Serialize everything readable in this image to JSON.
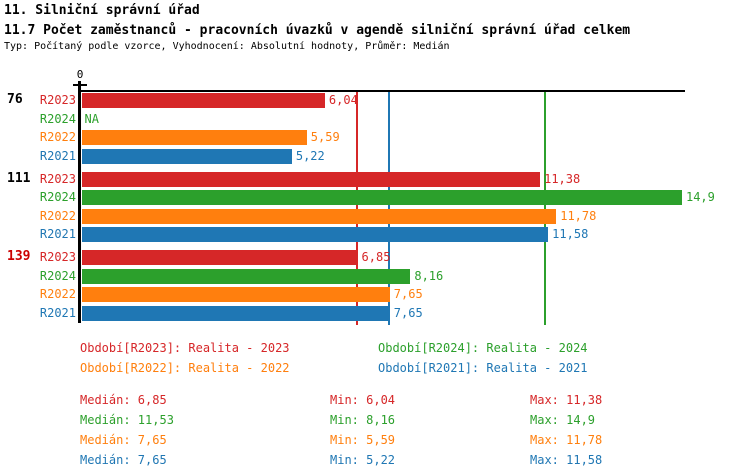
{
  "header": {
    "title": "11. Silniční správní úřad",
    "subtitle": "11.7 Počet zaměstnanců - pracovních úvazků v agendě silniční správní úřad celkem",
    "meta": "Typ: Počítaný podle vzorce, Vyhodnocení: Absolutní hodnoty, Průměr: Medián"
  },
  "colors": {
    "R2023": "#d62728",
    "R2024": "#2ca02c",
    "R2022": "#ff7f0e",
    "R2021": "#1f77b4",
    "group_label_default": "#000000",
    "group_label_highlight": "#cc0000",
    "axis": "#000000"
  },
  "chart_data": {
    "type": "bar",
    "orientation": "horizontal",
    "title": "11.7 Počet zaměstnanců - pracovních úvazků v agendě silniční správní úřad celkem",
    "x_axis": {
      "origin_label": "0",
      "xlim_shown": [
        0,
        15
      ]
    },
    "grid": false,
    "series_order": [
      "R2023",
      "R2024",
      "R2022",
      "R2021"
    ],
    "groups": [
      {
        "label": "76",
        "label_color": "default",
        "bars": [
          {
            "series": "R2023",
            "value": 6.04,
            "display": "6,04"
          },
          {
            "series": "R2024",
            "value": null,
            "display": "NA"
          },
          {
            "series": "R2022",
            "value": 5.59,
            "display": "5,59"
          },
          {
            "series": "R2021",
            "value": 5.22,
            "display": "5,22"
          }
        ]
      },
      {
        "label": "111",
        "label_color": "default",
        "bars": [
          {
            "series": "R2023",
            "value": 11.38,
            "display": "11,38"
          },
          {
            "series": "R2024",
            "value": 14.9,
            "display": "14,9"
          },
          {
            "series": "R2022",
            "value": 11.78,
            "display": "11,78"
          },
          {
            "series": "R2021",
            "value": 11.58,
            "display": "11,58"
          }
        ]
      },
      {
        "label": "139",
        "label_color": "highlight",
        "bars": [
          {
            "series": "R2023",
            "value": 6.85,
            "display": "6,85"
          },
          {
            "series": "R2024",
            "value": 8.16,
            "display": "8,16"
          },
          {
            "series": "R2022",
            "value": 7.65,
            "display": "7,65"
          },
          {
            "series": "R2021",
            "value": 7.65,
            "display": "7,65"
          }
        ]
      }
    ],
    "reference_lines": [
      {
        "series": "R2023",
        "value": 6.85
      },
      {
        "series": "R2022",
        "value": 7.65
      },
      {
        "series": "R2021",
        "value": 7.65
      },
      {
        "series": "R2024",
        "value": 11.53
      }
    ],
    "legend": [
      {
        "series": "R2023",
        "label": "Období[R2023]: Realita - 2023"
      },
      {
        "series": "R2024",
        "label": "Období[R2024]: Realita - 2024"
      },
      {
        "series": "R2022",
        "label": "Období[R2022]: Realita - 2022"
      },
      {
        "series": "R2021",
        "label": "Období[R2021]: Realita - 2021"
      }
    ],
    "stats": [
      {
        "series": "R2023",
        "median": "Medián: 6,85",
        "min": "Min: 6,04",
        "max": "Max: 11,38"
      },
      {
        "series": "R2024",
        "median": "Medián: 11,53",
        "min": "Min: 8,16",
        "max": "Max: 14,9"
      },
      {
        "series": "R2022",
        "median": "Medián: 7,65",
        "min": "Min: 5,59",
        "max": "Max: 11,78"
      },
      {
        "series": "R2021",
        "median": "Medián: 7,65",
        "min": "Min: 5,22",
        "max": "Max: 11,58"
      }
    ]
  }
}
